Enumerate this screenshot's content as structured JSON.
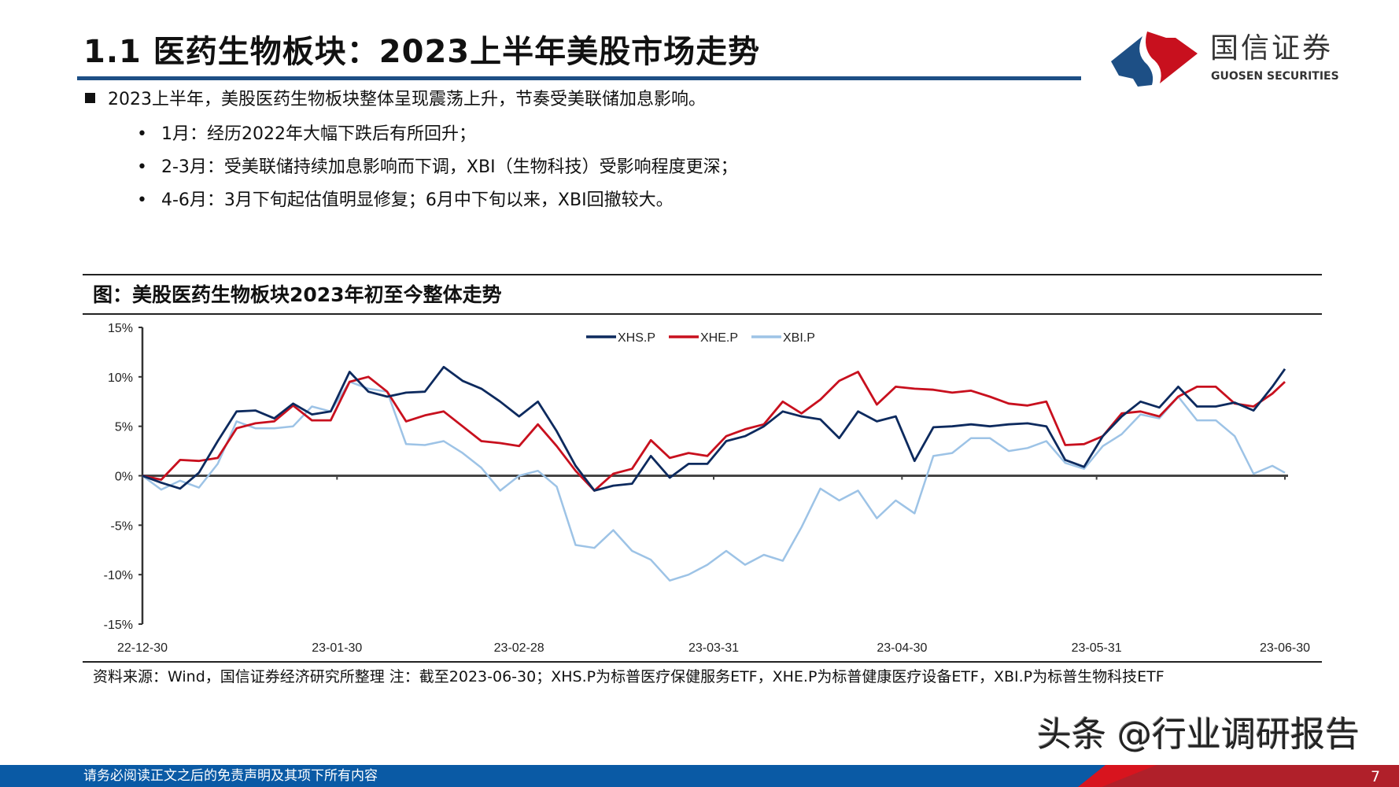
{
  "header": {
    "title": "1.1 医药生物板块：2023上半年美股市场走势",
    "logo_cn": "国信证券",
    "logo_en": "GUOSEN SECURITIES"
  },
  "bullets": {
    "main": "2023上半年，美股医药生物板块整体呈现震荡上升，节奏受美联储加息影响。",
    "subs": [
      "1月：经历2022年大幅下跌后有所回升；",
      "2-3月：受美联储持续加息影响而下调，XBI（生物科技）受影响程度更深；",
      "4-6月：3月下旬起估值明显修复；6月中下旬以来，XBI回撤较大。"
    ]
  },
  "figure": {
    "title": "图：美股医药生物板块2023年初至今整体走势",
    "source": "资料来源：Wind，国信证券经济研究所整理 注：截至2023-06-30；XHS.P为标普医疗保健服务ETF，XHE.P为标普健康医疗设备ETF，XBI.P为标普生物科技ETF"
  },
  "chart_data": {
    "type": "line",
    "title": "",
    "xlabel": "",
    "ylabel": "",
    "ylim": [
      -15,
      15
    ],
    "yticks": [
      "15%",
      "10%",
      "5%",
      "0%",
      "-5%",
      "-10%",
      "-15%"
    ],
    "ytick_values": [
      15,
      10,
      5,
      0,
      -5,
      -10,
      -15
    ],
    "xticks": [
      "22-12-30",
      "23-01-30",
      "23-02-28",
      "23-03-31",
      "23-04-30",
      "23-05-31",
      "23-06-30"
    ],
    "xtick_dates": [
      "2022-12-30",
      "2023-01-30",
      "2023-02-28",
      "2023-03-31",
      "2023-04-30",
      "2023-05-31",
      "2023-06-30"
    ],
    "xlim": [
      "2022-12-30",
      "2023-06-30"
    ],
    "grid": false,
    "legend_position": "top-center",
    "x": [
      "2022-12-30",
      "2023-01-02",
      "2023-01-05",
      "2023-01-08",
      "2023-01-11",
      "2023-01-14",
      "2023-01-17",
      "2023-01-20",
      "2023-01-23",
      "2023-01-26",
      "2023-01-29",
      "2023-02-01",
      "2023-02-04",
      "2023-02-07",
      "2023-02-10",
      "2023-02-13",
      "2023-02-16",
      "2023-02-19",
      "2023-02-22",
      "2023-02-25",
      "2023-02-28",
      "2023-03-03",
      "2023-03-06",
      "2023-03-09",
      "2023-03-12",
      "2023-03-15",
      "2023-03-18",
      "2023-03-21",
      "2023-03-24",
      "2023-03-27",
      "2023-03-30",
      "2023-04-02",
      "2023-04-05",
      "2023-04-08",
      "2023-04-11",
      "2023-04-14",
      "2023-04-17",
      "2023-04-20",
      "2023-04-23",
      "2023-04-26",
      "2023-04-29",
      "2023-05-02",
      "2023-05-05",
      "2023-05-08",
      "2023-05-11",
      "2023-05-14",
      "2023-05-17",
      "2023-05-20",
      "2023-05-23",
      "2023-05-26",
      "2023-05-29",
      "2023-06-01",
      "2023-06-04",
      "2023-06-07",
      "2023-06-10",
      "2023-06-13",
      "2023-06-16",
      "2023-06-19",
      "2023-06-22",
      "2023-06-25",
      "2023-06-28",
      "2023-06-30"
    ],
    "series": [
      {
        "name": "XHS.P",
        "color": "#0d2a5e",
        "values": [
          0,
          -0.7,
          -1.3,
          0.3,
          3.5,
          6.5,
          6.6,
          5.8,
          7.3,
          6.2,
          6.5,
          10.5,
          8.5,
          8,
          8.4,
          8.5,
          11,
          9.6,
          8.8,
          7.5,
          6,
          7.5,
          4.5,
          1,
          -1.5,
          -1,
          -0.8,
          2,
          -0.2,
          1.2,
          1.2,
          3.5,
          4,
          5,
          6.5,
          6,
          5.7,
          3.8,
          6.5,
          5.5,
          6,
          1.5,
          4.9,
          5,
          5.2,
          5,
          5.2,
          5.3,
          5,
          1.6,
          0.9,
          4,
          6,
          7.5,
          6.9,
          9,
          7,
          7,
          7.4,
          6.6,
          9,
          10.8
        ]
      },
      {
        "name": "XHE.P",
        "color": "#c8101e",
        "values": [
          0,
          -0.4,
          1.6,
          1.5,
          1.8,
          4.8,
          5.3,
          5.5,
          7.1,
          5.6,
          5.6,
          9.5,
          10,
          8.5,
          5.5,
          6.1,
          6.5,
          5,
          3.5,
          3.3,
          3,
          5.2,
          3,
          0.5,
          -1.5,
          0.2,
          0.7,
          3.6,
          1.8,
          2.3,
          2,
          4,
          4.7,
          5.2,
          7.5,
          6.3,
          7.7,
          9.6,
          10.5,
          7.2,
          9,
          8.8,
          8.7,
          8.4,
          8.6,
          8,
          7.3,
          7.1,
          7.5,
          3.1,
          3.2,
          4,
          6.3,
          6.5,
          6,
          8,
          9,
          9,
          7.3,
          7,
          8.3,
          9.5
        ]
      },
      {
        "name": "XBI.P",
        "color": "#9dc3e6",
        "values": [
          0,
          -1.4,
          -0.5,
          -1.2,
          1.2,
          5.5,
          4.8,
          4.8,
          5,
          7,
          6.5,
          9.5,
          8.8,
          8.5,
          3.2,
          3.1,
          3.5,
          2.3,
          0.8,
          -1.5,
          0,
          0.5,
          -1.1,
          -7,
          -7.3,
          -5.5,
          -7.6,
          -8.5,
          -10.6,
          -10,
          -9,
          -7.6,
          -9,
          -8,
          -8.6,
          -5.2,
          -1.3,
          -2.5,
          -1.5,
          -4.3,
          -2.5,
          -3.8,
          2,
          2.3,
          3.8,
          3.8,
          2.5,
          2.8,
          3.5,
          1.3,
          0.7,
          3,
          4.2,
          6.2,
          5.8,
          8,
          5.6,
          5.6,
          4,
          0.2,
          1,
          0.3
        ]
      }
    ]
  },
  "watermark": "头条 @行业调研报告",
  "footer": {
    "disclaimer": "请务必阅读正文之后的免责声明及其项下所有内容",
    "page": "7"
  },
  "colors": {
    "brand_blue": "#1d4f85",
    "brand_red": "#c8101e",
    "footer_blue": "#0a5aa5",
    "footer_red": "#b0202a"
  }
}
